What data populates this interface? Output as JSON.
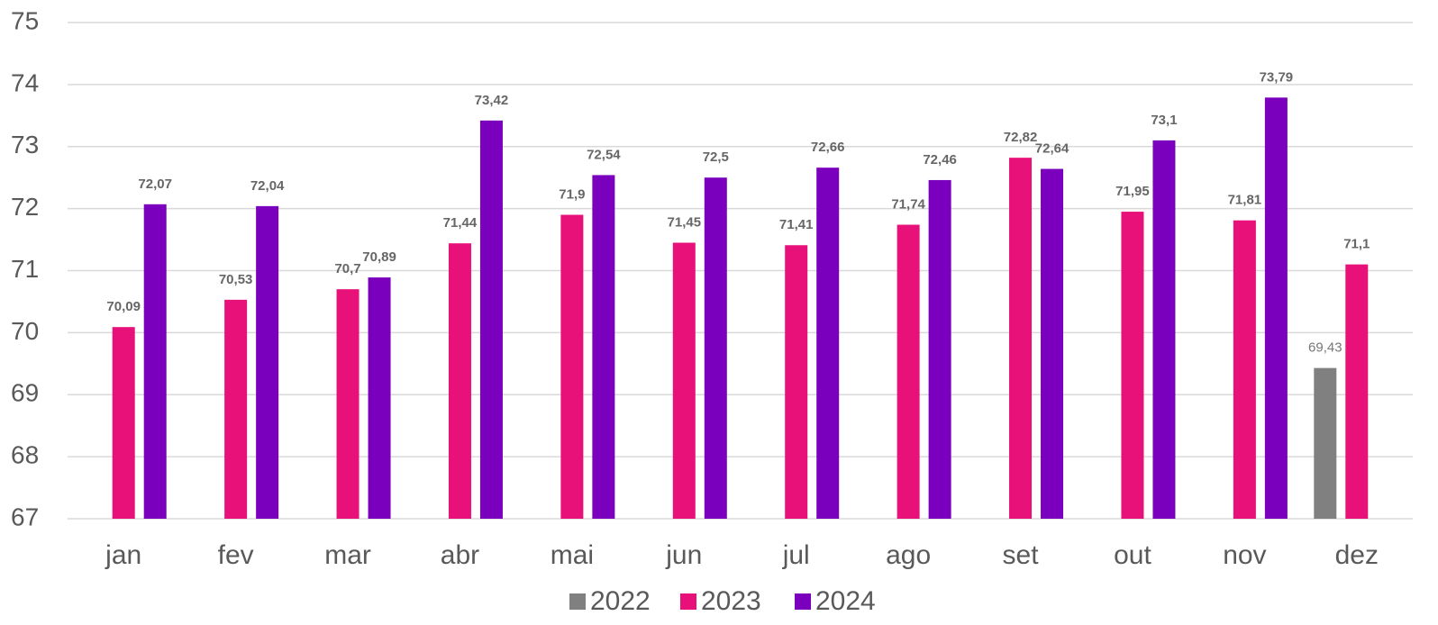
{
  "chart_data": {
    "type": "bar",
    "categories": [
      "jan",
      "fev",
      "mar",
      "abr",
      "mai",
      "jun",
      "jul",
      "ago",
      "set",
      "out",
      "nov",
      "dez"
    ],
    "series": [
      {
        "name": "2022",
        "color": "#808080",
        "values": [
          null,
          null,
          null,
          null,
          null,
          null,
          null,
          null,
          null,
          null,
          null,
          69.43
        ],
        "value_labels": [
          null,
          null,
          null,
          null,
          null,
          null,
          null,
          null,
          null,
          null,
          null,
          "69,43"
        ]
      },
      {
        "name": "2023",
        "color": "#e8117a",
        "values": [
          70.09,
          70.53,
          70.7,
          71.44,
          71.9,
          71.45,
          71.41,
          71.74,
          72.82,
          71.95,
          71.81,
          71.1
        ],
        "value_labels": [
          "70,09",
          "70,53",
          "70,7",
          "71,44",
          "71,9",
          "71,45",
          "71,41",
          "71,74",
          "72,82",
          "71,95",
          "71,81",
          "71,1"
        ]
      },
      {
        "name": "2024",
        "color": "#7b00be",
        "values": [
          72.07,
          72.04,
          70.89,
          73.42,
          72.54,
          72.5,
          72.66,
          72.46,
          72.64,
          73.1,
          73.79,
          null
        ],
        "value_labels": [
          "72,07",
          "72,04",
          "70,89",
          "73,42",
          "72,54",
          "72,5",
          "72,66",
          "72,46",
          "72,64",
          "73,1",
          "73,79",
          null
        ]
      }
    ],
    "ylim": [
      67,
      75
    ],
    "yticks": [
      67,
      68,
      69,
      70,
      71,
      72,
      73,
      74,
      75
    ],
    "grid": true,
    "legend": "bottom"
  }
}
